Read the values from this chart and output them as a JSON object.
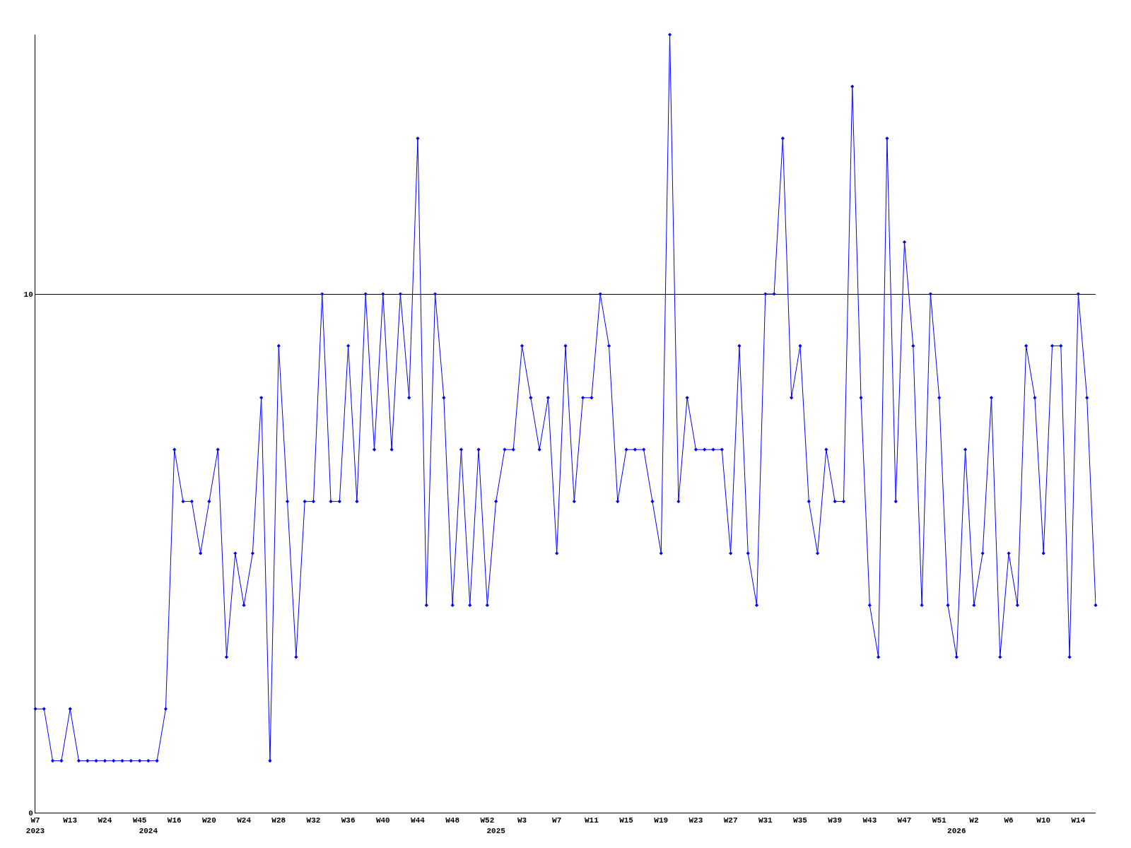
{
  "chart_data": {
    "type": "line",
    "categories": [
      "W7\n2023",
      null,
      null,
      null,
      "W13",
      null,
      null,
      null,
      "W24",
      null,
      null,
      null,
      "W45",
      "\n2024",
      null,
      null,
      "W16",
      null,
      null,
      null,
      "W20",
      null,
      null,
      null,
      "W24",
      null,
      null,
      null,
      "W28",
      null,
      null,
      null,
      "W32",
      null,
      null,
      null,
      "W36",
      null,
      null,
      null,
      "W40",
      null,
      null,
      null,
      "W44",
      null,
      null,
      null,
      "W48",
      null,
      null,
      null,
      "W52",
      "\n2025",
      null,
      null,
      "W3",
      null,
      null,
      null,
      "W7",
      null,
      null,
      null,
      "W11",
      null,
      null,
      null,
      "W15",
      null,
      null,
      null,
      "W19",
      null,
      null,
      null,
      "W23",
      null,
      null,
      null,
      "W27",
      null,
      null,
      null,
      "W31",
      null,
      null,
      null,
      "W35",
      null,
      null,
      null,
      "W39",
      null,
      null,
      null,
      "W43",
      null,
      null,
      null,
      "W47",
      null,
      null,
      null,
      "W51",
      null,
      "\n2026",
      null,
      "W2",
      null,
      null,
      null,
      "W6",
      null,
      null,
      null,
      "W10",
      null,
      null,
      null,
      "W14",
      null,
      null
    ],
    "series": [
      {
        "color": "#0000ff",
        "values": [
          2,
          2,
          1,
          1,
          2,
          1,
          1,
          1,
          1,
          1,
          1,
          1,
          1,
          1,
          1,
          2,
          7,
          6,
          6,
          5,
          6,
          7,
          3,
          5,
          4,
          5,
          8,
          1,
          9,
          6,
          3,
          6,
          6,
          10,
          6,
          6,
          9,
          6,
          10,
          7,
          10,
          7,
          10,
          8,
          13,
          4,
          10,
          8,
          4,
          7,
          4,
          7,
          4,
          6,
          7,
          7,
          9,
          8,
          7,
          8,
          5,
          9,
          6,
          8,
          8,
          10,
          9,
          6,
          7,
          7,
          7,
          6,
          5,
          15,
          6,
          8,
          7,
          7,
          7,
          7,
          5,
          9,
          5,
          4,
          10,
          10,
          13,
          8,
          9,
          6,
          5,
          7,
          6,
          6,
          14,
          8,
          4,
          3,
          13,
          6,
          11,
          9,
          4,
          10,
          8,
          4,
          3,
          7,
          4,
          5,
          8,
          3,
          5,
          4,
          9,
          8,
          5,
          9,
          9,
          3,
          10,
          8,
          4
        ]
      }
    ],
    "ylim": [
      0,
      15
    ],
    "yticks": [
      0,
      10
    ],
    "grid": "y",
    "marker": "diamond",
    "line_style": "solid",
    "legend": false
  }
}
